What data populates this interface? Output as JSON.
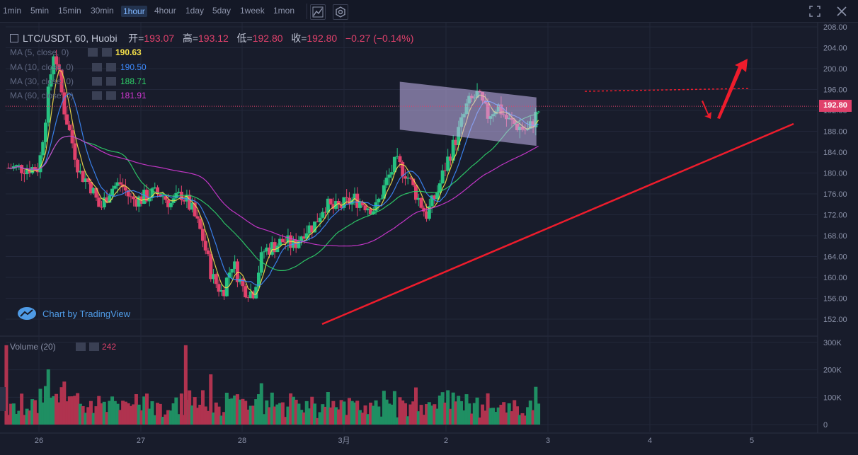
{
  "toolbar": {
    "timeframes": [
      "1min",
      "5min",
      "15min",
      "30min",
      "1hour",
      "4hour",
      "1day",
      "5day",
      "1week",
      "1mon"
    ],
    "active": "1hour"
  },
  "header": {
    "symbol": "LTC/USDT, 60, Huobi",
    "open_label": "开=",
    "open": "193.07",
    "high_label": "高=",
    "high": "193.12",
    "low_label": "低=",
    "low": "192.80",
    "close_label": "收=",
    "close": "192.80",
    "change": "−0.27 (−0.14%)"
  },
  "ma_legend": [
    {
      "label": "MA (5, close, 0)",
      "value": "190.63",
      "color": "#f5e04a"
    },
    {
      "label": "MA (10, close, 0)",
      "value": "190.50",
      "color": "#3d8bff"
    },
    {
      "label": "MA (30, close, 0)",
      "value": "188.71",
      "color": "#2fd46a"
    },
    {
      "label": "MA (60, close, 0)",
      "value": "181.91",
      "color": "#d438d6"
    }
  ],
  "volume_legend": {
    "label": "Volume (20)",
    "value": "242"
  },
  "watermark": "Chart by TradingView",
  "price_label": "192.80",
  "chart_data": [
    {
      "type": "candlestick",
      "title": "LTC/USDT, 60, Huobi",
      "ylim": [
        150,
        209
      ],
      "y_ticks": [
        "208.00",
        "204.00",
        "200.00",
        "196.00",
        "192.00",
        "188.00",
        "184.00",
        "180.00",
        "176.00",
        "172.00",
        "168.00",
        "164.00",
        "160.00",
        "156.00",
        "152.00"
      ],
      "x_ticks": [
        "26",
        "27",
        "28",
        "3月",
        "2",
        "3",
        "4",
        "5"
      ],
      "last_price": 192.8,
      "series": [
        {
          "name": "price (approx close path)",
          "points": [
            [
              0,
              181
            ],
            [
              0.15,
              204
            ],
            [
              0.25,
              192
            ],
            [
              0.4,
              180
            ],
            [
              0.5,
              178
            ],
            [
              0.6,
              173
            ],
            [
              0.7,
              177
            ],
            [
              0.8,
              178
            ],
            [
              0.9,
              175
            ],
            [
              1.0,
              175
            ],
            [
              1.1,
              176
            ],
            [
              1.2,
              176
            ],
            [
              1.3,
              174
            ],
            [
              1.4,
              176
            ],
            [
              1.5,
              173
            ],
            [
              1.6,
              168
            ],
            [
              1.7,
              160
            ],
            [
              1.8,
              157
            ],
            [
              1.9,
              163
            ],
            [
              2.0,
              158
            ],
            [
              2.1,
              157
            ],
            [
              2.2,
              165
            ],
            [
              2.3,
              166
            ],
            [
              2.4,
              167
            ],
            [
              2.5,
              166
            ],
            [
              2.6,
              169
            ],
            [
              2.7,
              170
            ],
            [
              2.8,
              174
            ],
            [
              2.9,
              173
            ],
            [
              3.0,
              174
            ],
            [
              3.1,
              175
            ],
            [
              3.2,
              174
            ],
            [
              3.3,
              173
            ],
            [
              3.4,
              178
            ],
            [
              3.5,
              182
            ],
            [
              3.6,
              180
            ],
            [
              3.7,
              176
            ],
            [
              3.8,
              172
            ],
            [
              3.9,
              176
            ],
            [
              4.0,
              182
            ],
            [
              4.1,
              187
            ],
            [
              4.2,
              193
            ],
            [
              4.3,
              195
            ],
            [
              4.4,
              191
            ],
            [
              4.5,
              193
            ],
            [
              4.6,
              190
            ],
            [
              4.7,
              189
            ],
            [
              4.8,
              188
            ],
            [
              4.9,
              192
            ]
          ]
        },
        {
          "name": "MA (5)",
          "color": "#f5e04a"
        },
        {
          "name": "MA (10)",
          "color": "#3d8bff"
        },
        {
          "name": "MA (30)",
          "color": "#2fd46a"
        },
        {
          "name": "MA (60)",
          "color": "#d438d6"
        }
      ],
      "annotations": [
        "ascending support trendline",
        "descending channel box",
        "resistance dotted line at ~195.5",
        "down-then-up red arrows"
      ]
    },
    {
      "type": "bar",
      "title": "Volume (20)",
      "ylim": [
        0,
        300000
      ],
      "y_ticks": [
        "300K",
        "200K",
        "100K",
        "0"
      ],
      "last_value": 242
    }
  ]
}
